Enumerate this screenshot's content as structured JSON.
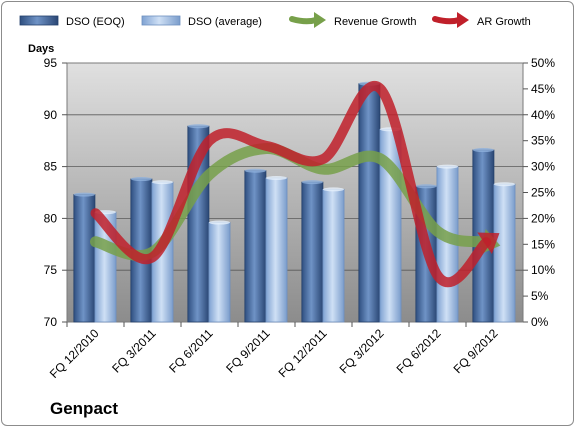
{
  "chart_data": {
    "type": "bar",
    "company": "Genpact",
    "ylabel": "Days",
    "categories": [
      "FQ 12/2010",
      "FQ 3/2011",
      "FQ 6/2011",
      "FQ 9/2011",
      "FQ 12/2011",
      "FQ 3/2012",
      "FQ 6/2012",
      "FQ 9/2012"
    ],
    "ylim": [
      70,
      95
    ],
    "yticks": [
      "70",
      "75",
      "80",
      "85",
      "90",
      "95"
    ],
    "y2lim": [
      0,
      50
    ],
    "y2ticks": [
      "0%",
      "5%",
      "10%",
      "15%",
      "20%",
      "25%",
      "30%",
      "35%",
      "40%",
      "45%",
      "50%"
    ],
    "grid": true,
    "legend_position": "top",
    "series": [
      {
        "name": "DSO (EOQ)",
        "kind": "bar",
        "color": "#4a6fa5",
        "values": [
          82.3,
          83.8,
          88.9,
          84.6,
          83.5,
          93.0,
          83.1,
          86.6
        ]
      },
      {
        "name": "DSO (average)",
        "kind": "bar",
        "color": "#a9c4e8",
        "values": [
          80.6,
          83.5,
          79.6,
          83.9,
          82.8,
          88.6,
          85.0,
          83.3
        ]
      },
      {
        "name": "Revenue Growth",
        "kind": "line",
        "axis": "right",
        "color": "#77a04a",
        "values": [
          15.5,
          13.5,
          28.5,
          33.5,
          29.5,
          31.5,
          17.5,
          15.0
        ]
      },
      {
        "name": "AR Growth",
        "kind": "line",
        "axis": "right",
        "color": "#c0202a",
        "values": [
          21.0,
          12.5,
          35.0,
          34.0,
          31.5,
          45.0,
          9.0,
          16.5
        ]
      }
    ]
  }
}
